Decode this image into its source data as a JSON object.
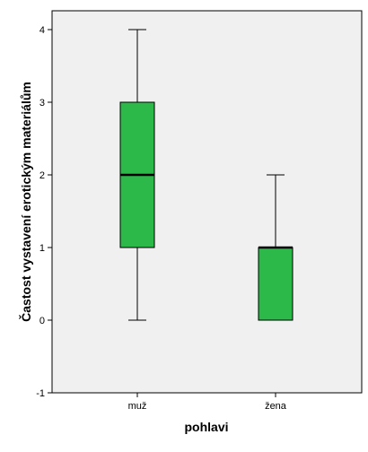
{
  "chart_data": {
    "type": "boxplot",
    "title": "",
    "xlabel": "pohlavi",
    "ylabel": "Častost vystavení erotickým materiálům",
    "ylim": [
      -1,
      4.3
    ],
    "y_ticks": [
      -1,
      0,
      1,
      2,
      3,
      4
    ],
    "grid": false,
    "categories": [
      "muž",
      "žena"
    ],
    "boxes": [
      {
        "category": "muž",
        "min": 0,
        "q1": 1,
        "median": 2,
        "q3": 3,
        "max": 4
      },
      {
        "category": "žena",
        "min": 0,
        "q1": 0,
        "median": 1,
        "q3": 1,
        "max": 2
      }
    ],
    "colors": {
      "box_fill": "#2db84a",
      "plot_background": "#f0f0f0",
      "line": "#000000"
    }
  }
}
